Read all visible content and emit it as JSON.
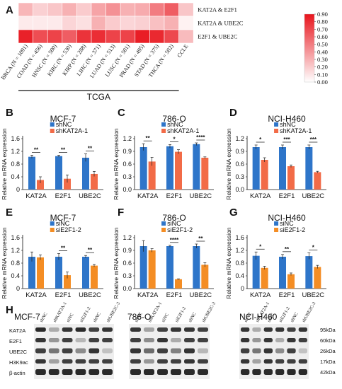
{
  "panel_labels": {
    "A": "A",
    "B": "B",
    "C": "C",
    "D": "D",
    "E": "E",
    "F": "F",
    "G": "G",
    "H": "H"
  },
  "heatmap": {
    "rows": [
      "KAT2A & E2F1",
      "KAT2A & UBE2C",
      "E2F1 & UBE2C"
    ],
    "columns": [
      "BRCA (N = 1091)",
      "COAD (N = 456)",
      "HNSC (N = 500)",
      "KIRC (N = 530)",
      "KIRP (N = 288)",
      "LIHC (N = 371)",
      "LUAD (N = 513)",
      "LUSC (N = 501)",
      "PRAD (N = 495)",
      "STAD (N = 375)",
      "THCA (N = 502)",
      "CCLE"
    ],
    "group_label": "TCGA",
    "colorbar_ticks": [
      "0.90",
      "0.80",
      "0.70",
      "0.60",
      "0.50",
      "0.40",
      "0.30",
      "0.20",
      "0.10",
      "0.00"
    ],
    "colors": {
      "low": "#ffffff",
      "high": "#e8141c"
    }
  },
  "chart_data": [
    {
      "type": "bar",
      "panel": "B",
      "title": "MCF-7",
      "ylabel": "Relative mRNA expression",
      "categories": [
        "KAT2A",
        "E2F1",
        "UBE2C"
      ],
      "ylim": [
        0,
        1.6
      ],
      "yticks": [
        "0",
        "0.4",
        "0.8",
        "1.2",
        "1.6"
      ],
      "series": [
        {
          "name": "shNC",
          "values": [
            1.03,
            1.05,
            1.0
          ],
          "errors": [
            0.05,
            0.03,
            0.12
          ],
          "color": "#2e75c9"
        },
        {
          "name": "shKAT2A-1",
          "values": [
            0.3,
            0.34,
            0.49
          ],
          "errors": [
            0.1,
            0.12,
            0.08
          ],
          "color": "#f26b47"
        }
      ],
      "significance": [
        "**",
        "**",
        "**"
      ]
    },
    {
      "type": "bar",
      "panel": "C",
      "title": "786-O",
      "ylabel": "Relative mRNA expression",
      "categories": [
        "KAT2A",
        "E2F1",
        "UBE2C"
      ],
      "ylim": [
        0,
        1.2
      ],
      "yticks": [
        "0.0",
        "0.3",
        "0.6",
        "0.9",
        "1.2"
      ],
      "series": [
        {
          "name": "shNC",
          "values": [
            1.0,
            1.02,
            1.07
          ],
          "errors": [
            0.08,
            0.04,
            0.03
          ],
          "color": "#2e75c9"
        },
        {
          "name": "shKAT2A-1",
          "values": [
            0.66,
            0.89,
            0.75
          ],
          "errors": [
            0.1,
            0.05,
            0.02
          ],
          "color": "#f26b47"
        }
      ],
      "significance": [
        "**",
        "*",
        "****"
      ]
    },
    {
      "type": "bar",
      "panel": "D",
      "title": "NCI-H460",
      "ylabel": "Relative mRNA expression",
      "categories": [
        "KAT2A",
        "E2F1",
        "UBE2C"
      ],
      "ylim": [
        0,
        1.2
      ],
      "yticks": [
        "0.0",
        "0.3",
        "0.6",
        "0.9",
        "1.2"
      ],
      "series": [
        {
          "name": "shNC",
          "values": [
            1.0,
            1.0,
            1.0
          ],
          "errors": [
            0.05,
            0.05,
            0.05
          ],
          "color": "#2e75c9"
        },
        {
          "name": "shKAT2A-1",
          "values": [
            0.7,
            0.55,
            0.41
          ],
          "errors": [
            0.05,
            0.03,
            0.02
          ],
          "color": "#f26b47"
        }
      ],
      "significance": [
        "*",
        "***",
        "***"
      ]
    },
    {
      "type": "bar",
      "panel": "E",
      "title": "MCF-7",
      "ylabel": "Relative mRNA expression",
      "categories": [
        "KAT2A",
        "E2F1",
        "UBE2C"
      ],
      "ylim": [
        0,
        1.6
      ],
      "yticks": [
        "0",
        "0.4",
        "0.8",
        "1.2",
        "1.6"
      ],
      "series": [
        {
          "name": "siNC",
          "values": [
            1.0,
            1.0,
            1.0
          ],
          "errors": [
            0.15,
            0.1,
            0.04
          ],
          "color": "#2e75c9"
        },
        {
          "name": "siE2F1-2",
          "values": [
            0.98,
            0.42,
            0.72
          ],
          "errors": [
            0.08,
            0.1,
            0.04
          ],
          "color": "#f48d24"
        }
      ],
      "significance": [
        "",
        "**",
        "**"
      ]
    },
    {
      "type": "bar",
      "panel": "F",
      "title": "786-O",
      "ylabel": "Relative mRNA expression",
      "categories": [
        "KAT2A",
        "E2F1",
        "UBE2C"
      ],
      "ylim": [
        0,
        1.2
      ],
      "yticks": [
        "0.0",
        "0.3",
        "0.6",
        "0.9",
        "1.2"
      ],
      "series": [
        {
          "name": "siNC",
          "values": [
            1.0,
            1.0,
            1.0
          ],
          "errors": [
            0.13,
            0.02,
            0.05
          ],
          "color": "#2e75c9"
        },
        {
          "name": "siE2F1-2",
          "values": [
            0.9,
            0.22,
            0.56
          ],
          "errors": [
            0.04,
            0.01,
            0.05
          ],
          "color": "#f48d24"
        }
      ],
      "significance": [
        "",
        "****",
        "**"
      ]
    },
    {
      "type": "bar",
      "panel": "G",
      "title": "NCI-H460",
      "ylabel": "Relative mRNA expression",
      "categories": [
        "KAT2A",
        "E2F1",
        "UBE2C"
      ],
      "ylim": [
        0,
        1.6
      ],
      "yticks": [
        "0",
        "0.4",
        "0.8",
        "1.2",
        "1.6"
      ],
      "series": [
        {
          "name": "siNC",
          "values": [
            1.03,
            1.0,
            1.02
          ],
          "errors": [
            0.12,
            0.07,
            0.1
          ],
          "color": "#2e75c9"
        },
        {
          "name": "siE2F1-2",
          "values": [
            0.65,
            0.45,
            0.68
          ],
          "errors": [
            0.05,
            0.04,
            0.05
          ],
          "color": "#f48d24"
        }
      ],
      "significance": [
        "*",
        "**",
        "*"
      ]
    }
  ],
  "blots": {
    "proteins": [
      "KAT2A",
      "E2F1",
      "UBE2C",
      "H3K9ac",
      "β-actin"
    ],
    "sizes": [
      "95kDa",
      "60kDa",
      "26kDa",
      "17kDa",
      "42kDa"
    ],
    "panels": [
      {
        "title": "MCF-7",
        "lanes": [
          "shNC",
          "shKAT2A-1",
          "siNC",
          "siE2F1-2",
          "shNC",
          "shUBE2C-3"
        ]
      },
      {
        "title": "786-O",
        "lanes": [
          "shNC",
          "shKAT2A-1",
          "siNC",
          "siE2F1-2",
          "shNC",
          "shUBE2C-3"
        ]
      },
      {
        "title": "NCI-H460",
        "lanes": [
          "shNC",
          "shKAT2A-1",
          "siNC",
          "siE2F1-2",
          "shNC",
          "shUBE2C-3"
        ]
      }
    ]
  }
}
